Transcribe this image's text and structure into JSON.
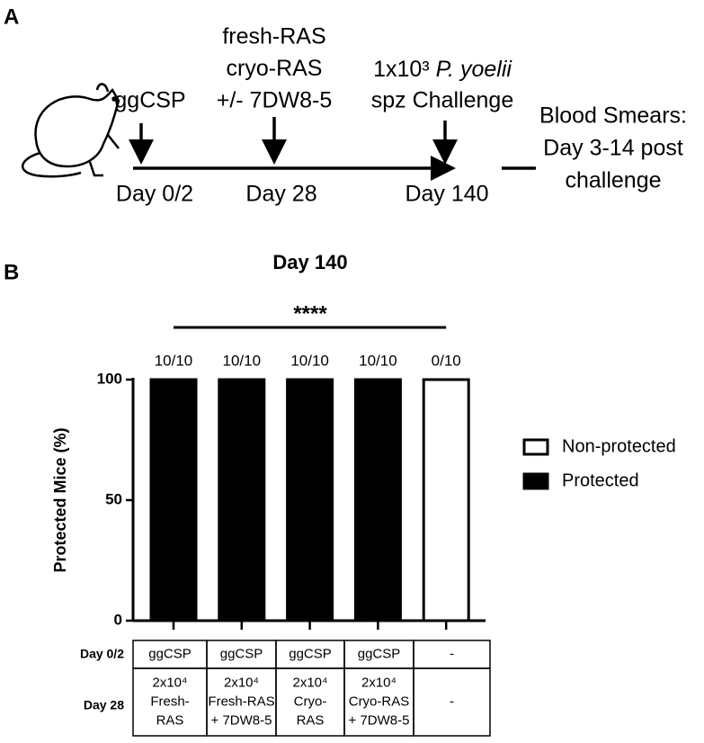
{
  "panel_a": {
    "letter": "A",
    "events": [
      {
        "above": [
          "ggCSP"
        ],
        "day": "Day 0/2"
      },
      {
        "above": [
          "fresh-RAS",
          "cryo-RAS",
          "+/- 7DW8-5"
        ],
        "day": "Day 28"
      },
      {
        "above_parts": [
          "1x10³",
          "P. yoelii"
        ],
        "above": [
          "spz Challenge"
        ],
        "day": "Day 140"
      }
    ],
    "readout": [
      "Blood Smears:",
      "Day 3-14 post",
      "challenge"
    ]
  },
  "chart_data": {
    "type": "bar",
    "panel": "B",
    "title": "Day 140",
    "ylabel": "Protected Mice (%)",
    "categories": [
      null,
      null,
      null,
      null,
      null
    ],
    "series": [
      {
        "name": "Non-protected",
        "color": "#ffffff",
        "values": [
          0,
          0,
          0,
          0,
          100
        ]
      },
      {
        "name": "Protected",
        "color": "#000000",
        "values": [
          100,
          100,
          100,
          100,
          0
        ]
      }
    ],
    "bar_labels": [
      "10/10",
      "10/10",
      "10/10",
      "10/10",
      "0/10"
    ],
    "significance": "****",
    "ylim": [
      0,
      100
    ],
    "yticks": [
      0,
      50,
      100
    ],
    "grid": false,
    "legend": "right"
  },
  "table": {
    "row_labels": [
      "Day 0/2",
      "Day 28"
    ],
    "rows": [
      [
        [
          "ggCSP"
        ],
        [
          "ggCSP"
        ],
        [
          "ggCSP"
        ],
        [
          "ggCSP"
        ],
        [
          "-"
        ]
      ],
      [
        [
          "2x10⁴",
          "Fresh-",
          "RAS"
        ],
        [
          "2x10⁴",
          "Fresh-RAS",
          "+ 7DW8-5"
        ],
        [
          "2x10⁴",
          "Cryo-",
          "RAS"
        ],
        [
          "2x10⁴",
          "Cryo-RAS",
          "+ 7DW8-5"
        ],
        [
          "-"
        ]
      ]
    ]
  }
}
